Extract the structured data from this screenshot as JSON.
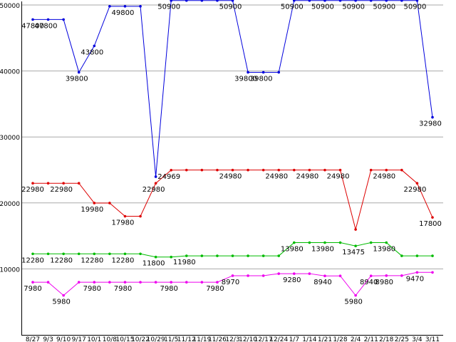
{
  "page": {
    "background": "#ffffff"
  },
  "chart_data": {
    "type": "line",
    "title": "",
    "xlabel": "",
    "ylabel": "",
    "ylim": [
      0,
      50000
    ],
    "y_ticks": [
      10000,
      20000,
      30000,
      40000,
      50000
    ],
    "grid": "horizontal",
    "legend": "none",
    "categories": [
      "8/27",
      "9/3",
      "9/10",
      "9/17",
      "10/1",
      "10/8",
      "10/15",
      "10/22",
      "10/29",
      "11/5",
      "11/12",
      "11/19",
      "11/26",
      "12/3",
      "12/10",
      "12/17",
      "12/24",
      "1/7",
      "1/14",
      "1/21",
      "1/28",
      "2/4",
      "2/11",
      "2/18",
      "2/25",
      "3/4",
      "3/11"
    ],
    "colors": {
      "grid": "#aaaaaa",
      "axis": "#000000",
      "point_label": "#000000",
      "background": "#ffffff"
    },
    "series": [
      {
        "name": "blue",
        "color": "#0000dd",
        "values": [
          47800,
          47800,
          47800,
          39800,
          43800,
          49800,
          49800,
          49800,
          23980,
          50900,
          50900,
          50900,
          50900,
          50900,
          39800,
          39800,
          39800,
          50900,
          50900,
          50900,
          50900,
          50900,
          50900,
          50900,
          50900,
          50900,
          32980
        ],
        "point_labels": [
          "47800",
          "47800",
          null,
          "39800",
          "43800",
          null,
          "49800",
          null,
          null,
          "50900",
          null,
          null,
          null,
          "50900",
          "39800",
          "39800",
          null,
          "50900",
          null,
          "50900",
          null,
          "50900",
          null,
          "50900",
          null,
          "50900",
          "32980"
        ]
      },
      {
        "name": "red",
        "color": "#dd0000",
        "values": [
          22980,
          22980,
          22980,
          22980,
          19980,
          19980,
          17980,
          17980,
          22980,
          24969,
          24980,
          24980,
          24980,
          24980,
          24980,
          24980,
          24980,
          24980,
          24980,
          24980,
          24980,
          15980,
          24980,
          24980,
          24980,
          22980,
          17800
        ],
        "point_labels": [
          "22980",
          null,
          "22980",
          null,
          "19980",
          null,
          "17980",
          null,
          "22980",
          "24969",
          null,
          null,
          null,
          "24980",
          null,
          null,
          "24980",
          null,
          "24980",
          null,
          "24980",
          null,
          null,
          "24980",
          null,
          "22980",
          "17800"
        ]
      },
      {
        "name": "green",
        "color": "#00bb00",
        "values": [
          12280,
          12280,
          12280,
          12280,
          12280,
          12280,
          12280,
          12280,
          11800,
          11800,
          11980,
          11980,
          11980,
          11980,
          11980,
          11980,
          11980,
          13980,
          13980,
          13980,
          13980,
          13475,
          13980,
          13980,
          11980,
          11980,
          11980
        ],
        "point_labels": [
          "12280",
          null,
          "12280",
          null,
          "12280",
          null,
          "12280",
          null,
          "11800",
          null,
          "11980",
          null,
          null,
          null,
          null,
          null,
          null,
          "13980",
          null,
          "13980",
          null,
          "13475",
          null,
          "13980",
          null,
          null,
          null
        ]
      },
      {
        "name": "magenta",
        "color": "#ee00ee",
        "values": [
          7980,
          7980,
          5980,
          7980,
          7980,
          7980,
          7980,
          7980,
          7980,
          7980,
          7980,
          7980,
          7980,
          8970,
          8970,
          8970,
          9280,
          9280,
          9280,
          8940,
          8940,
          5980,
          8940,
          8980,
          8980,
          9470,
          9470
        ],
        "point_labels": [
          "7980",
          null,
          "5980",
          null,
          "7980",
          null,
          "7980",
          null,
          null,
          "7980",
          null,
          null,
          "7980",
          "8970",
          null,
          null,
          null,
          "9280",
          null,
          "8940",
          null,
          "5980",
          "8940",
          "8980",
          null,
          "9470",
          null
        ]
      }
    ]
  }
}
